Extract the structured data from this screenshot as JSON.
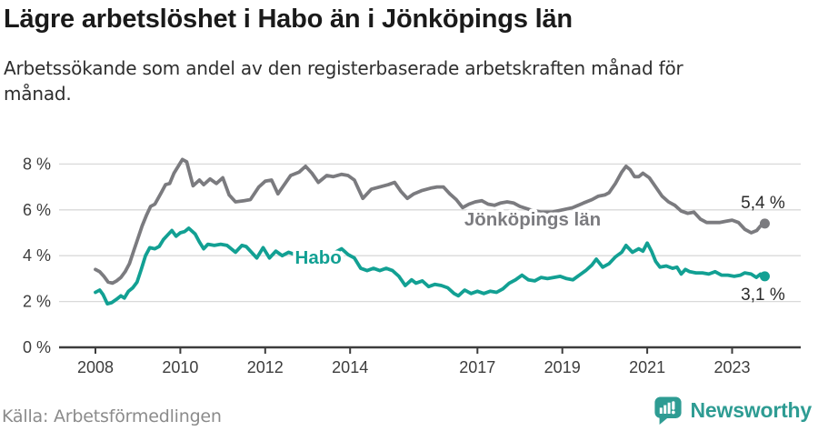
{
  "header": {
    "title": "Lägre arbetslöshet i Habo än i Jönköpings län",
    "subtitle_line1": "Arbetssökande som andel av den registerbaserade arbetskraften månad för",
    "subtitle_line2": "månad."
  },
  "footer": {
    "source": "Källa: Arbetsförmedlingen",
    "logo_text": "Newsworthy",
    "logo_color": "#2E9C93"
  },
  "chart_data": {
    "type": "line",
    "title": "Lägre arbetslöshet i Habo än i Jönköpings län",
    "unit": "%",
    "grid": true,
    "ylim": [
      0,
      8.6
    ],
    "xlim": [
      2007.1,
      2024.6
    ],
    "y_ticks": [
      {
        "value": 0,
        "label": "0 %"
      },
      {
        "value": 2,
        "label": "2 %"
      },
      {
        "value": 4,
        "label": "4 %"
      },
      {
        "value": 6,
        "label": "6 %"
      },
      {
        "value": 8,
        "label": "8 %"
      }
    ],
    "x_ticks": [
      {
        "value": 2008,
        "label": "2008"
      },
      {
        "value": 2010,
        "label": "2010"
      },
      {
        "value": 2012,
        "label": "2012"
      },
      {
        "value": 2014,
        "label": "2014"
      },
      {
        "value": 2017,
        "label": "2017"
      },
      {
        "value": 2019,
        "label": "2019"
      },
      {
        "value": 2021,
        "label": "2021"
      },
      {
        "value": 2023,
        "label": "2023"
      }
    ],
    "series": [
      {
        "name": "Jönköpings län",
        "color": "#7B7B7F",
        "end_label": "5,4 %",
        "end_label_side": "above",
        "last_value": 5.4,
        "inline_label": {
          "text": "Jönköpings län",
          "x": 2018.3,
          "y": 5.6
        },
        "points": [
          [
            2008.0,
            3.4
          ],
          [
            2008.1,
            3.3
          ],
          [
            2008.2,
            3.1
          ],
          [
            2008.3,
            2.85
          ],
          [
            2008.4,
            2.8
          ],
          [
            2008.5,
            2.9
          ],
          [
            2008.6,
            3.05
          ],
          [
            2008.7,
            3.3
          ],
          [
            2008.8,
            3.65
          ],
          [
            2008.9,
            4.2
          ],
          [
            2009.0,
            4.75
          ],
          [
            2009.1,
            5.3
          ],
          [
            2009.2,
            5.75
          ],
          [
            2009.3,
            6.15
          ],
          [
            2009.4,
            6.25
          ],
          [
            2009.55,
            6.75
          ],
          [
            2009.65,
            7.1
          ],
          [
            2009.75,
            7.15
          ],
          [
            2009.85,
            7.6
          ],
          [
            2009.95,
            7.9
          ],
          [
            2010.05,
            8.2
          ],
          [
            2010.15,
            8.1
          ],
          [
            2010.3,
            7.05
          ],
          [
            2010.45,
            7.3
          ],
          [
            2010.55,
            7.1
          ],
          [
            2010.7,
            7.35
          ],
          [
            2010.85,
            7.15
          ],
          [
            2011.0,
            7.4
          ],
          [
            2011.15,
            6.65
          ],
          [
            2011.3,
            6.35
          ],
          [
            2011.5,
            6.4
          ],
          [
            2011.65,
            6.45
          ],
          [
            2011.85,
            7.0
          ],
          [
            2012.0,
            7.25
          ],
          [
            2012.15,
            7.3
          ],
          [
            2012.3,
            6.7
          ],
          [
            2012.45,
            7.1
          ],
          [
            2012.6,
            7.5
          ],
          [
            2012.8,
            7.65
          ],
          [
            2012.95,
            7.9
          ],
          [
            2013.1,
            7.6
          ],
          [
            2013.25,
            7.2
          ],
          [
            2013.45,
            7.5
          ],
          [
            2013.6,
            7.45
          ],
          [
            2013.8,
            7.55
          ],
          [
            2013.95,
            7.5
          ],
          [
            2014.1,
            7.3
          ],
          [
            2014.3,
            6.5
          ],
          [
            2014.5,
            6.9
          ],
          [
            2014.7,
            7.0
          ],
          [
            2014.9,
            7.1
          ],
          [
            2015.05,
            7.2
          ],
          [
            2015.2,
            6.8
          ],
          [
            2015.35,
            6.5
          ],
          [
            2015.5,
            6.7
          ],
          [
            2015.7,
            6.85
          ],
          [
            2015.9,
            6.95
          ],
          [
            2016.05,
            7.0
          ],
          [
            2016.2,
            7.0
          ],
          [
            2016.35,
            6.7
          ],
          [
            2016.5,
            6.45
          ],
          [
            2016.65,
            6.1
          ],
          [
            2016.8,
            6.25
          ],
          [
            2016.95,
            6.35
          ],
          [
            2017.1,
            6.4
          ],
          [
            2017.25,
            6.25
          ],
          [
            2017.4,
            6.2
          ],
          [
            2017.55,
            6.3
          ],
          [
            2017.7,
            6.35
          ],
          [
            2017.85,
            6.3
          ],
          [
            2018.0,
            6.15
          ],
          [
            2018.25,
            6.0
          ],
          [
            2018.5,
            5.9
          ],
          [
            2018.75,
            5.9
          ],
          [
            2019.0,
            6.0
          ],
          [
            2019.25,
            6.1
          ],
          [
            2019.5,
            6.3
          ],
          [
            2019.7,
            6.45
          ],
          [
            2019.85,
            6.6
          ],
          [
            2020.0,
            6.65
          ],
          [
            2020.1,
            6.75
          ],
          [
            2020.25,
            7.15
          ],
          [
            2020.4,
            7.65
          ],
          [
            2020.5,
            7.9
          ],
          [
            2020.6,
            7.75
          ],
          [
            2020.7,
            7.45
          ],
          [
            2020.8,
            7.45
          ],
          [
            2020.9,
            7.6
          ],
          [
            2021.05,
            7.4
          ],
          [
            2021.2,
            7.0
          ],
          [
            2021.35,
            6.6
          ],
          [
            2021.5,
            6.35
          ],
          [
            2021.65,
            6.2
          ],
          [
            2021.8,
            5.95
          ],
          [
            2021.95,
            5.85
          ],
          [
            2022.1,
            5.9
          ],
          [
            2022.25,
            5.6
          ],
          [
            2022.4,
            5.45
          ],
          [
            2022.55,
            5.45
          ],
          [
            2022.7,
            5.45
          ],
          [
            2022.85,
            5.5
          ],
          [
            2023.0,
            5.55
          ],
          [
            2023.15,
            5.45
          ],
          [
            2023.3,
            5.15
          ],
          [
            2023.45,
            5.0
          ],
          [
            2023.58,
            5.1
          ],
          [
            2023.67,
            5.3
          ],
          [
            2023.77,
            5.4
          ]
        ]
      },
      {
        "name": "Habo",
        "color": "#12A093",
        "end_label": "3,1 %",
        "end_label_side": "below",
        "last_value": 3.1,
        "inline_label": {
          "text": "Habo",
          "x": 2013.25,
          "y": 3.93
        },
        "points": [
          [
            2008.0,
            2.4
          ],
          [
            2008.1,
            2.5
          ],
          [
            2008.18,
            2.3
          ],
          [
            2008.28,
            1.9
          ],
          [
            2008.38,
            1.95
          ],
          [
            2008.5,
            2.1
          ],
          [
            2008.6,
            2.25
          ],
          [
            2008.68,
            2.15
          ],
          [
            2008.78,
            2.45
          ],
          [
            2008.88,
            2.6
          ],
          [
            2008.98,
            2.85
          ],
          [
            2009.08,
            3.4
          ],
          [
            2009.18,
            4.0
          ],
          [
            2009.28,
            4.35
          ],
          [
            2009.4,
            4.3
          ],
          [
            2009.5,
            4.4
          ],
          [
            2009.6,
            4.7
          ],
          [
            2009.7,
            4.9
          ],
          [
            2009.8,
            5.1
          ],
          [
            2009.9,
            4.85
          ],
          [
            2010.0,
            5.0
          ],
          [
            2010.1,
            5.05
          ],
          [
            2010.2,
            5.2
          ],
          [
            2010.35,
            4.95
          ],
          [
            2010.45,
            4.6
          ],
          [
            2010.55,
            4.3
          ],
          [
            2010.65,
            4.5
          ],
          [
            2010.8,
            4.45
          ],
          [
            2010.95,
            4.5
          ],
          [
            2011.1,
            4.45
          ],
          [
            2011.3,
            4.15
          ],
          [
            2011.45,
            4.45
          ],
          [
            2011.55,
            4.4
          ],
          [
            2011.8,
            3.9
          ],
          [
            2011.95,
            4.35
          ],
          [
            2012.1,
            3.9
          ],
          [
            2012.25,
            4.2
          ],
          [
            2012.4,
            4.0
          ],
          [
            2012.55,
            4.15
          ],
          [
            2012.7,
            4.05
          ],
          [
            2012.85,
            4.1
          ],
          [
            2013.0,
            4.15
          ],
          [
            2013.15,
            4.05
          ],
          [
            2013.3,
            4.1
          ],
          [
            2013.5,
            4.05
          ],
          [
            2013.65,
            4.15
          ],
          [
            2013.8,
            4.3
          ],
          [
            2013.95,
            4.05
          ],
          [
            2014.1,
            3.9
          ],
          [
            2014.25,
            3.45
          ],
          [
            2014.4,
            3.35
          ],
          [
            2014.55,
            3.45
          ],
          [
            2014.7,
            3.35
          ],
          [
            2014.85,
            3.45
          ],
          [
            2015.0,
            3.35
          ],
          [
            2015.15,
            3.1
          ],
          [
            2015.3,
            2.7
          ],
          [
            2015.45,
            2.95
          ],
          [
            2015.55,
            2.8
          ],
          [
            2015.7,
            2.9
          ],
          [
            2015.85,
            2.65
          ],
          [
            2016.0,
            2.75
          ],
          [
            2016.15,
            2.7
          ],
          [
            2016.3,
            2.6
          ],
          [
            2016.45,
            2.35
          ],
          [
            2016.55,
            2.25
          ],
          [
            2016.7,
            2.5
          ],
          [
            2016.85,
            2.35
          ],
          [
            2017.0,
            2.45
          ],
          [
            2017.15,
            2.35
          ],
          [
            2017.3,
            2.45
          ],
          [
            2017.45,
            2.4
          ],
          [
            2017.6,
            2.55
          ],
          [
            2017.75,
            2.8
          ],
          [
            2017.9,
            2.95
          ],
          [
            2018.05,
            3.15
          ],
          [
            2018.2,
            2.95
          ],
          [
            2018.35,
            2.9
          ],
          [
            2018.5,
            3.05
          ],
          [
            2018.65,
            3.0
          ],
          [
            2018.8,
            3.05
          ],
          [
            2018.95,
            3.1
          ],
          [
            2019.1,
            3.0
          ],
          [
            2019.25,
            2.95
          ],
          [
            2019.4,
            3.15
          ],
          [
            2019.55,
            3.35
          ],
          [
            2019.7,
            3.6
          ],
          [
            2019.8,
            3.85
          ],
          [
            2019.95,
            3.5
          ],
          [
            2020.1,
            3.65
          ],
          [
            2020.25,
            3.95
          ],
          [
            2020.4,
            4.15
          ],
          [
            2020.5,
            4.45
          ],
          [
            2020.65,
            4.15
          ],
          [
            2020.8,
            4.3
          ],
          [
            2020.9,
            4.2
          ],
          [
            2021.0,
            4.55
          ],
          [
            2021.1,
            4.2
          ],
          [
            2021.2,
            3.75
          ],
          [
            2021.3,
            3.5
          ],
          [
            2021.45,
            3.55
          ],
          [
            2021.6,
            3.45
          ],
          [
            2021.7,
            3.5
          ],
          [
            2021.8,
            3.2
          ],
          [
            2021.9,
            3.4
          ],
          [
            2022.0,
            3.3
          ],
          [
            2022.15,
            3.25
          ],
          [
            2022.3,
            3.25
          ],
          [
            2022.45,
            3.2
          ],
          [
            2022.6,
            3.3
          ],
          [
            2022.75,
            3.15
          ],
          [
            2022.9,
            3.15
          ],
          [
            2023.05,
            3.1
          ],
          [
            2023.2,
            3.15
          ],
          [
            2023.3,
            3.25
          ],
          [
            2023.45,
            3.2
          ],
          [
            2023.57,
            3.05
          ],
          [
            2023.67,
            3.2
          ],
          [
            2023.77,
            3.1
          ]
        ]
      }
    ],
    "style": {
      "grid_color": "#d9d9d9",
      "axis_color": "#3d3d3d",
      "tick_text_color": "#3d3d3d",
      "end_label_color": "#2b2b2b"
    }
  }
}
